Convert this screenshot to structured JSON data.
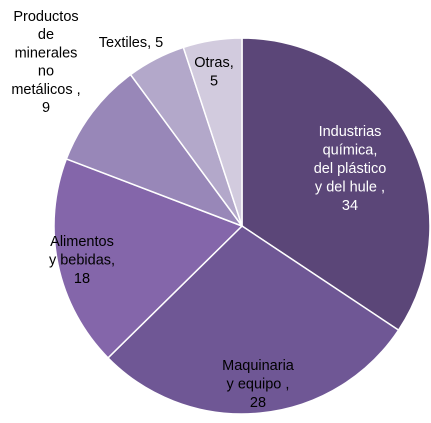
{
  "chart_data": {
    "type": "pie",
    "title": "",
    "slices": [
      {
        "label": "Industrias química, del plástico y del hule",
        "value": 34,
        "color": "#5b4678",
        "label_color": "#ffffff",
        "label_lines": [
          "Industrias",
          "química,",
          "del plástico",
          "y del hule ,",
          "34"
        ]
      },
      {
        "label": "Maquinaria y equipo",
        "value": 28,
        "color": "#6f5795",
        "label_color": "#000000",
        "label_lines": [
          "Maquinaria",
          "y equipo ,",
          "28"
        ]
      },
      {
        "label": "Alimentos y bebidas",
        "value": 18,
        "color": "#8466aa",
        "label_color": "#000000",
        "label_lines": [
          "Alimentos",
          "y bebidas,",
          "18"
        ]
      },
      {
        "label": "Productos de minerales no metálicos",
        "value": 9,
        "color": "#9887b8",
        "label_color": "#000000",
        "label_lines": [
          "Productos",
          "de",
          "minerales",
          "no",
          "metálicos ,",
          "9"
        ]
      },
      {
        "label": "Textiles",
        "value": 5,
        "color": "#b3a8ca",
        "label_color": "#000000",
        "label_lines": [
          "Textiles, 5"
        ]
      },
      {
        "label": "Otras",
        "value": 5,
        "color": "#d2cbde",
        "label_color": "#000000",
        "label_lines": [
          "Otras,",
          "5"
        ]
      }
    ]
  }
}
